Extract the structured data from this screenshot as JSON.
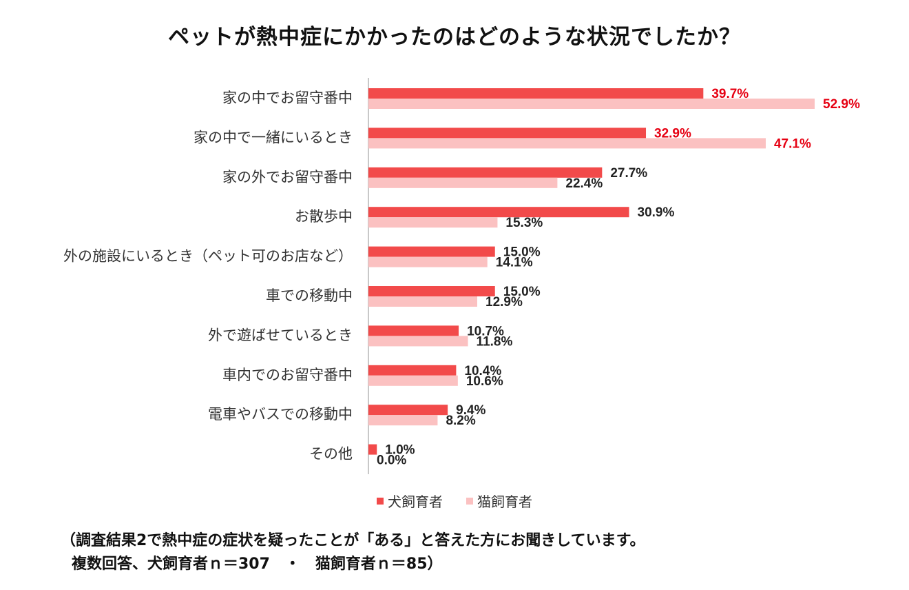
{
  "title": "ペットが熱中症にかかったのはどのような状況でしたか？",
  "colors": {
    "dog": "#f24a4a",
    "cat": "#fbc1c1",
    "highlight_text": "#e60012",
    "text": "#222222",
    "axis": "#c8c8c8"
  },
  "legend": {
    "dog": "犬飼育者",
    "cat": "猫飼育者"
  },
  "notes": {
    "line1": "（調査結果2で熱中症の症状を疑ったことが「ある」と答えた方にお聞きしています。",
    "line2": "複数回答、犬飼育者ｎ＝307　・　猫飼育者ｎ＝85）"
  },
  "chart_data": {
    "type": "bar",
    "orientation": "horizontal",
    "title": "ペットが熱中症にかかったのはどのような状況でしたか？",
    "categories": [
      "家の中でお留守番中",
      "家の中で一緒にいるとき",
      "家の外でお留守番中",
      "お散歩中",
      "外の施設にいるとき（ペット可のお店など）",
      "車での移動中",
      "外で遊ばせているとき",
      "車内でのお留守番中",
      "電車やバスでの移動中",
      "その他"
    ],
    "series": [
      {
        "name": "犬飼育者",
        "values": [
          39.7,
          32.9,
          27.7,
          30.9,
          15.0,
          15.0,
          10.7,
          10.4,
          9.4,
          1.0
        ],
        "labels": [
          "39.7%",
          "32.9%",
          "27.7%",
          "30.9%",
          "15.0%",
          "15.0%",
          "10.7%",
          "10.4%",
          "9.4%",
          "1.0%"
        ]
      },
      {
        "name": "猫飼育者",
        "values": [
          52.9,
          47.1,
          22.4,
          15.3,
          14.1,
          12.9,
          11.8,
          10.6,
          8.2,
          0.0
        ],
        "labels": [
          "52.9%",
          "47.1%",
          "22.4%",
          "15.3%",
          "14.1%",
          "12.9%",
          "11.8%",
          "10.6%",
          "8.2%",
          "0.0%"
        ]
      }
    ],
    "highlight_rows": [
      0,
      1
    ],
    "xlim": [
      0,
      55
    ],
    "grid": false,
    "legend_position": "bottom"
  }
}
